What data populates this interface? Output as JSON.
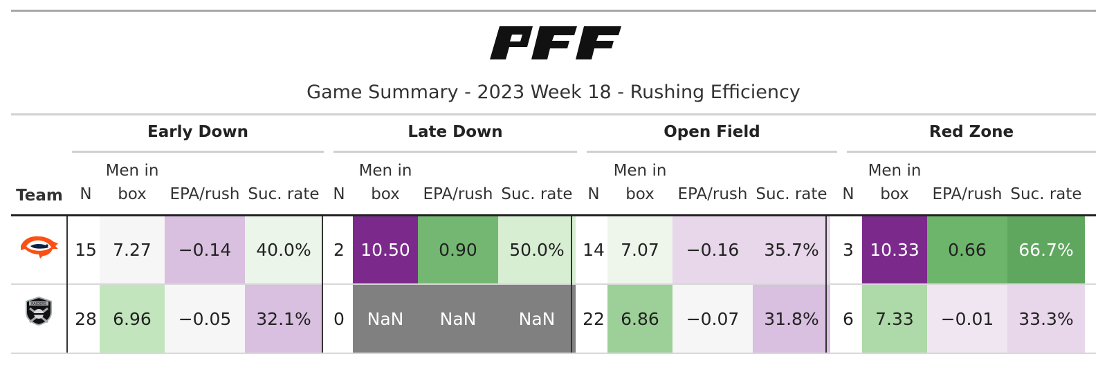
{
  "logo_text": "PFF",
  "title": "Game Summary - 2023 Week 18 - Rushing Efficiency",
  "groups": [
    "Early Down",
    "Late Down",
    "Open Field",
    "Red Zone"
  ],
  "columns": {
    "team": "Team",
    "n": "N",
    "men_line1": "Men in",
    "men_line2": "box",
    "epa": "EPA/rush",
    "suc": "Suc. rate"
  },
  "teams": [
    {
      "logo_icon": "broncos-logo-icon",
      "cells": [
        {
          "value": "15",
          "bg": "#ffffff",
          "light": false
        },
        {
          "value": "7.27",
          "bg": "#f6f6f6",
          "light": false
        },
        {
          "value": "−0.14",
          "bg": "#d9bfe0",
          "light": false
        },
        {
          "value": "40.0%",
          "bg": "#ebf5ea",
          "light": false
        },
        {
          "value": "2",
          "bg": "#ffffff",
          "light": false
        },
        {
          "value": "10.50",
          "bg": "#7b2a8b",
          "light": true
        },
        {
          "value": "0.90",
          "bg": "#74b772",
          "light": false
        },
        {
          "value": "50.0%",
          "bg": "#d7eed3",
          "light": false
        },
        {
          "value": "14",
          "bg": "#ffffff",
          "light": false
        },
        {
          "value": "7.07",
          "bg": "#eef6ec",
          "light": false
        },
        {
          "value": "−0.16",
          "bg": "#e8d6ea",
          "light": false
        },
        {
          "value": "35.7%",
          "bg": "#e8d6ea",
          "light": false
        },
        {
          "value": "3",
          "bg": "#ffffff",
          "light": false
        },
        {
          "value": "10.33",
          "bg": "#7b2a8b",
          "light": true
        },
        {
          "value": "0.66",
          "bg": "#6db56b",
          "light": false
        },
        {
          "value": "66.7%",
          "bg": "#5fa65e",
          "light": true
        }
      ]
    },
    {
      "logo_icon": "raiders-logo-icon",
      "cells": [
        {
          "value": "28",
          "bg": "#ffffff",
          "light": false
        },
        {
          "value": "6.96",
          "bg": "#c2e5bd",
          "light": false
        },
        {
          "value": "−0.05",
          "bg": "#f6f6f6",
          "light": false
        },
        {
          "value": "32.1%",
          "bg": "#d9bfe0",
          "light": false
        },
        {
          "value": "0",
          "bg": "#ffffff",
          "light": false
        },
        {
          "value": "NaN",
          "bg": "#808080",
          "light": true
        },
        {
          "value": "NaN",
          "bg": "#808080",
          "light": true
        },
        {
          "value": "NaN",
          "bg": "#808080",
          "light": true
        },
        {
          "value": "22",
          "bg": "#ffffff",
          "light": false
        },
        {
          "value": "6.86",
          "bg": "#9dd098",
          "light": false
        },
        {
          "value": "−0.07",
          "bg": "#f6f6f6",
          "light": false
        },
        {
          "value": "31.8%",
          "bg": "#d9bfe0",
          "light": false
        },
        {
          "value": "6",
          "bg": "#ffffff",
          "light": false
        },
        {
          "value": "7.33",
          "bg": "#aed9a8",
          "light": false
        },
        {
          "value": "−0.01",
          "bg": "#efe6f1",
          "light": false
        },
        {
          "value": "33.3%",
          "bg": "#e8d6ea",
          "light": false
        }
      ]
    }
  ]
}
